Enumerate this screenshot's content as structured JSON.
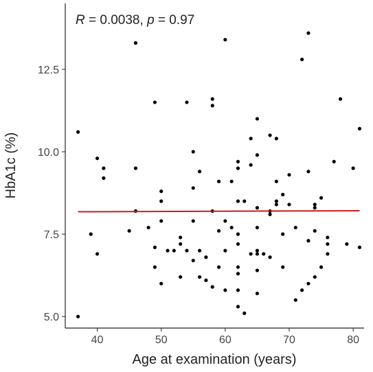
{
  "chart_data": {
    "type": "scatter",
    "annotation": [
      "R",
      " = 0.0038, ",
      "p",
      " = 0.97"
    ],
    "x_label": "Age at examination (years)",
    "y_label": "HbA1c (%)",
    "xlim": [
      35,
      81.7
    ],
    "ylim": [
      4.65,
      14.5
    ],
    "xticks": [
      40,
      50,
      60,
      70,
      80
    ],
    "yticks": [
      {
        "value": 5,
        "label": "5.0"
      },
      7.5,
      {
        "value": 10,
        "label": "10.0"
      },
      12.5
    ],
    "color": "#000000",
    "x": [
      37,
      37,
      39,
      40,
      40,
      41,
      41,
      46,
      45,
      46,
      46,
      48,
      49,
      49,
      49,
      50,
      50,
      50,
      50,
      51,
      52,
      53,
      53,
      53,
      54,
      54,
      55,
      55,
      55,
      55,
      56,
      56,
      56,
      57,
      57,
      58,
      58,
      58,
      58,
      59,
      59,
      59,
      60,
      60,
      60,
      60,
      61,
      61,
      62,
      62,
      62,
      62,
      62,
      62,
      62,
      62,
      62,
      63,
      63,
      64,
      64,
      64,
      65,
      65,
      65,
      65,
      65,
      65,
      65,
      65,
      66,
      67,
      67,
      67,
      67,
      68,
      68,
      68,
      68,
      69,
      69,
      69,
      70,
      70,
      71,
      71,
      72,
      72,
      73,
      73,
      73,
      73,
      74,
      74,
      74,
      74,
      75,
      75,
      76,
      76,
      76,
      77,
      78,
      79,
      80,
      81,
      81
    ],
    "y": [
      10.6,
      5.0,
      7.5,
      9.8,
      6.9,
      9.5,
      9.2,
      13.3,
      7.6,
      9.5,
      8.2,
      7.7,
      11.5,
      7.1,
      6.5,
      8.5,
      8.8,
      7.9,
      6.0,
      7.0,
      7.0,
      7.2,
      7.4,
      6.2,
      11.5,
      7.0,
      10.0,
      8.9,
      7.9,
      6.7,
      9.4,
      7.0,
      6.2,
      6.8,
      6.1,
      11.6,
      11.4,
      8.2,
      5.9,
      9.1,
      7.6,
      6.5,
      13.4,
      7.9,
      7.0,
      5.8,
      9.1,
      7.7,
      9.7,
      9.5,
      8.5,
      7.5,
      7.2,
      6.5,
      6.3,
      5.8,
      5.3,
      8.5,
      5.1,
      10.4,
      9.6,
      6.9,
      11.0,
      9.9,
      8.3,
      7.7,
      7.0,
      6.9,
      6.4,
      5.7,
      6.9,
      10.5,
      8.2,
      8.1,
      6.8,
      10.4,
      9.1,
      8.5,
      8.4,
      8.7,
      7.5,
      6.5,
      9.3,
      8.4,
      7.7,
      5.5,
      12.8,
      5.8,
      13.6,
      9.4,
      7.3,
      6.0,
      8.4,
      8.3,
      7.6,
      6.2,
      8.6,
      6.5,
      7.4,
      7.2,
      6.9,
      9.7,
      11.6,
      7.2,
      9.5,
      10.7,
      7.1
    ],
    "fit_line": {
      "x": [
        37,
        81
      ],
      "y": [
        8.18,
        8.21
      ],
      "color": "#cc1a1a"
    }
  }
}
